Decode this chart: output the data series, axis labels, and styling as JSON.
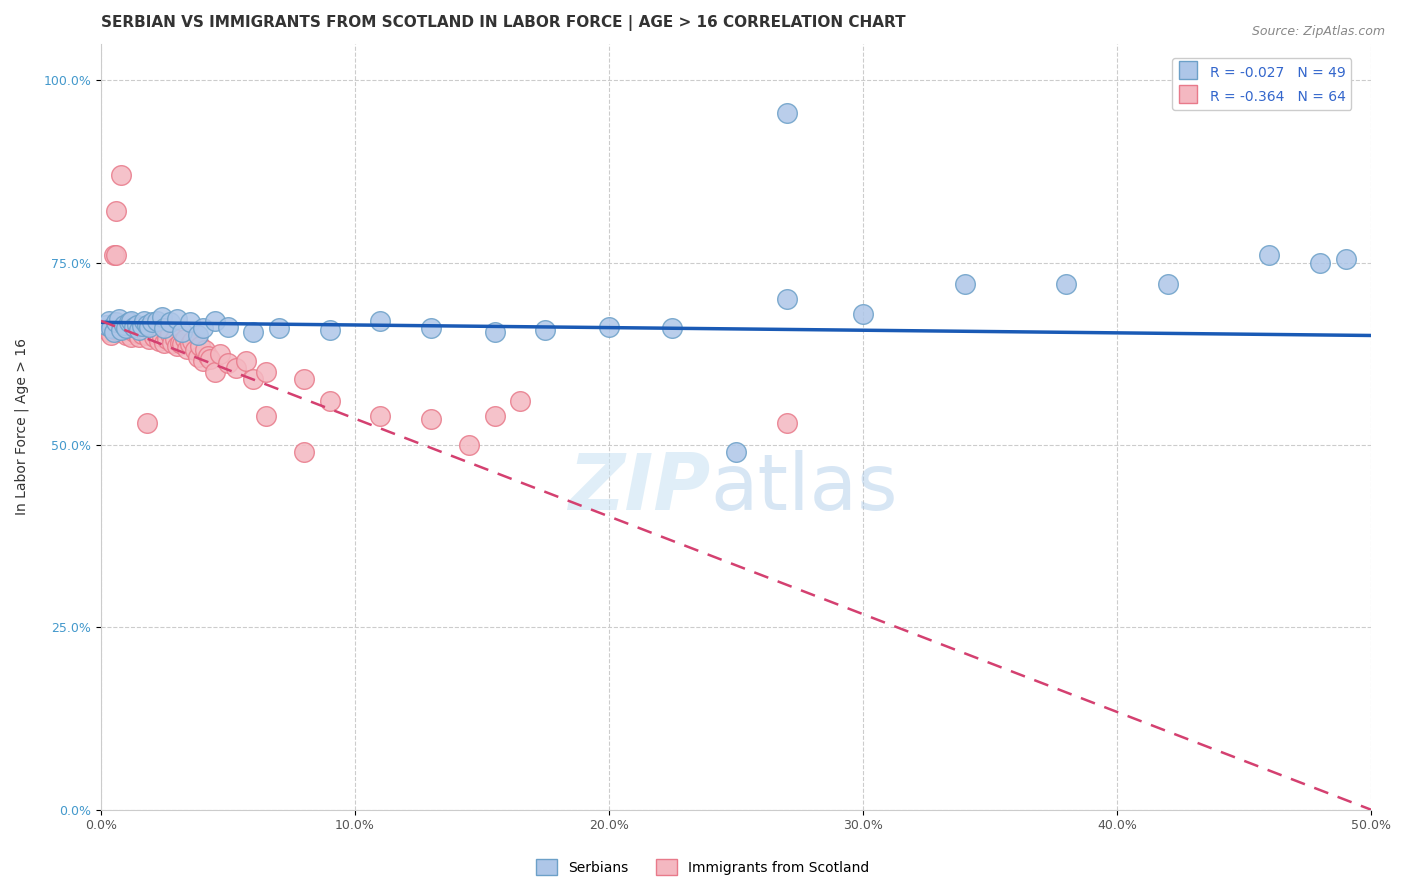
{
  "title": "SERBIAN VS IMMIGRANTS FROM SCOTLAND IN LABOR FORCE | AGE > 16 CORRELATION CHART",
  "source": "Source: ZipAtlas.com",
  "ylabel": "In Labor Force | Age > 16",
  "xlim": [
    0.0,
    0.5
  ],
  "ylim": [
    0.0,
    1.05
  ],
  "xticks": [
    0.0,
    0.1,
    0.2,
    0.3,
    0.4,
    0.5
  ],
  "xticklabels": [
    "0.0%",
    "10.0%",
    "20.0%",
    "30.0%",
    "40.0%",
    "50.0%"
  ],
  "yticks": [
    0.0,
    0.25,
    0.5,
    0.75,
    1.0
  ],
  "yticklabels": [
    "0.0%",
    "25.0%",
    "50.0%",
    "75.0%",
    "100.0%"
  ],
  "legend_serbian_label": "Serbians",
  "legend_scotland_label": "Immigrants from Scotland",
  "R_serbian": -0.027,
  "N_serbian": 49,
  "R_scotland": -0.364,
  "N_scotland": 64,
  "serbian_color": "#aec6e8",
  "scotland_color": "#f4b8c1",
  "serbian_edge": "#6ca0c8",
  "scotland_edge": "#e87a8a",
  "trendline_serbian_color": "#1a5ab5",
  "trendline_scotland_color": "#d44070",
  "background_color": "#ffffff",
  "title_fontsize": 11,
  "axis_label_fontsize": 10,
  "tick_fontsize": 9,
  "legend_fontsize": 10,
  "serbian_x": [
    0.002,
    0.003,
    0.004,
    0.005,
    0.006,
    0.007,
    0.008,
    0.009,
    0.01,
    0.011,
    0.012,
    0.013,
    0.014,
    0.015,
    0.016,
    0.017,
    0.018,
    0.019,
    0.02,
    0.022,
    0.024,
    0.025,
    0.027,
    0.03,
    0.032,
    0.035,
    0.038,
    0.04,
    0.045,
    0.05,
    0.06,
    0.07,
    0.09,
    0.11,
    0.13,
    0.155,
    0.175,
    0.2,
    0.225,
    0.25,
    0.27,
    0.3,
    0.34,
    0.38,
    0.42,
    0.46,
    0.48,
    0.49,
    0.27
  ],
  "serbian_y": [
    0.665,
    0.67,
    0.66,
    0.655,
    0.668,
    0.672,
    0.658,
    0.665,
    0.66,
    0.668,
    0.67,
    0.662,
    0.665,
    0.658,
    0.663,
    0.67,
    0.665,
    0.662,
    0.668,
    0.67,
    0.675,
    0.66,
    0.668,
    0.672,
    0.655,
    0.668,
    0.65,
    0.66,
    0.67,
    0.662,
    0.655,
    0.66,
    0.658,
    0.67,
    0.66,
    0.655,
    0.658,
    0.662,
    0.66,
    0.49,
    0.7,
    0.68,
    0.72,
    0.72,
    0.72,
    0.76,
    0.75,
    0.755,
    0.955
  ],
  "scotland_x": [
    0.002,
    0.003,
    0.004,
    0.005,
    0.006,
    0.007,
    0.008,
    0.009,
    0.01,
    0.011,
    0.012,
    0.013,
    0.014,
    0.015,
    0.016,
    0.017,
    0.018,
    0.019,
    0.02,
    0.021,
    0.022,
    0.023,
    0.024,
    0.025,
    0.026,
    0.027,
    0.028,
    0.029,
    0.03,
    0.031,
    0.032,
    0.033,
    0.034,
    0.035,
    0.036,
    0.037,
    0.038,
    0.039,
    0.04,
    0.041,
    0.042,
    0.043,
    0.045,
    0.047,
    0.05,
    0.053,
    0.057,
    0.06,
    0.065,
    0.08,
    0.09,
    0.11,
    0.13,
    0.145,
    0.155,
    0.165,
    0.018,
    0.27,
    0.08,
    0.065,
    0.008,
    0.005,
    0.006,
    0.006
  ],
  "scotland_y": [
    0.66,
    0.655,
    0.65,
    0.665,
    0.658,
    0.662,
    0.655,
    0.658,
    0.65,
    0.66,
    0.648,
    0.655,
    0.653,
    0.648,
    0.652,
    0.658,
    0.65,
    0.645,
    0.655,
    0.648,
    0.65,
    0.642,
    0.648,
    0.64,
    0.645,
    0.652,
    0.64,
    0.645,
    0.635,
    0.64,
    0.638,
    0.645,
    0.632,
    0.638,
    0.642,
    0.63,
    0.62,
    0.636,
    0.615,
    0.63,
    0.622,
    0.618,
    0.6,
    0.625,
    0.612,
    0.605,
    0.615,
    0.59,
    0.6,
    0.59,
    0.56,
    0.54,
    0.535,
    0.5,
    0.54,
    0.56,
    0.53,
    0.53,
    0.49,
    0.54,
    0.87,
    0.76,
    0.76,
    0.82
  ],
  "serbian_trend_x": [
    0.0,
    0.5
  ],
  "serbian_trend_y": [
    0.668,
    0.65
  ],
  "scotland_trend_x": [
    0.0,
    0.5
  ],
  "scotland_trend_y": [
    0.67,
    0.0
  ]
}
